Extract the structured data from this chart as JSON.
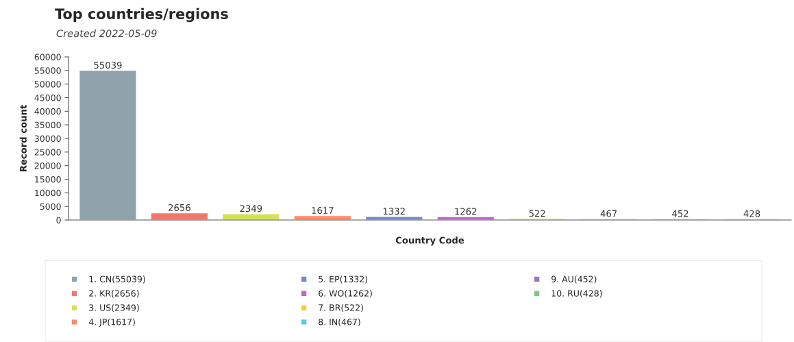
{
  "chart_data": {
    "type": "bar",
    "title": "Top countries/regions",
    "subtitle": "Created 2022-05-09",
    "xlabel": "Country Code",
    "ylabel": "Record count",
    "categories": [
      null,
      null,
      null,
      null,
      null,
      null,
      null,
      null,
      null,
      null
    ],
    "series": [
      {
        "name": "1. CN(55039)",
        "color": "#8fa3ad",
        "values": [
          55039,
          null,
          null,
          null,
          null,
          null,
          null,
          null,
          null,
          null
        ]
      },
      {
        "name": "2. KR(2656)",
        "color": "#f0776c",
        "values": [
          null,
          2656,
          null,
          null,
          null,
          null,
          null,
          null,
          null,
          null
        ]
      },
      {
        "name": "3. US(2349)",
        "color": "#d4e157",
        "values": [
          null,
          null,
          2349,
          null,
          null,
          null,
          null,
          null,
          null,
          null
        ]
      },
      {
        "name": "4. JP(1617)",
        "color": "#ff8a65",
        "values": [
          null,
          null,
          null,
          1617,
          null,
          null,
          null,
          null,
          null,
          null
        ]
      },
      {
        "name": "5. EP(1332)",
        "color": "#7986cb",
        "values": [
          null,
          null,
          null,
          null,
          1332,
          null,
          null,
          null,
          null,
          null
        ]
      },
      {
        "name": "6. WO(1262)",
        "color": "#ba68c8",
        "values": [
          null,
          null,
          null,
          null,
          null,
          1262,
          null,
          null,
          null,
          null
        ]
      },
      {
        "name": "7. BR(522)",
        "color": "#ffca28",
        "values": [
          null,
          null,
          null,
          null,
          null,
          null,
          522,
          null,
          null,
          null
        ]
      },
      {
        "name": "8. IN(467)",
        "color": "#4dd0e1",
        "values": [
          null,
          null,
          null,
          null,
          null,
          null,
          null,
          467,
          null,
          null
        ]
      },
      {
        "name": "9. AU(452)",
        "color": "#9575cd",
        "values": [
          null,
          null,
          null,
          null,
          null,
          null,
          null,
          null,
          452,
          null
        ]
      },
      {
        "name": "10. RU(428)",
        "color": "#81c784",
        "values": [
          null,
          null,
          null,
          null,
          null,
          null,
          null,
          null,
          null,
          428
        ]
      }
    ],
    "ylim": [
      0,
      60000
    ],
    "yticks": [
      0,
      5000,
      10000,
      15000,
      20000,
      25000,
      30000,
      35000,
      40000,
      45000,
      50000,
      55000,
      60000
    ],
    "data_labels": true,
    "legend": "bottom",
    "tick_labels": "y"
  }
}
